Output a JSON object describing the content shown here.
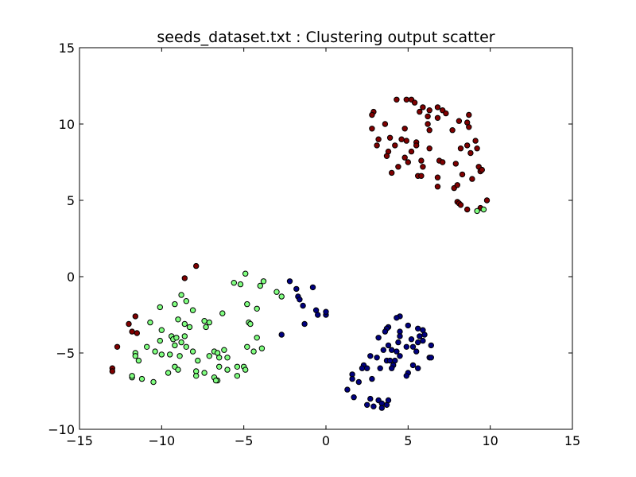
{
  "chart_data": {
    "type": "scatter",
    "title": "seeds_dataset.txt : Clustering output scatter",
    "xlabel": "",
    "ylabel": "",
    "xlim": [
      -15,
      15
    ],
    "ylim": [
      -10,
      15
    ],
    "xticks": [
      -15,
      -10,
      -5,
      0,
      5,
      10,
      15
    ],
    "yticks": [
      -10,
      -5,
      0,
      5,
      10,
      15
    ],
    "xtick_labels": [
      "−15",
      "−10",
      "−5",
      "0",
      "5",
      "10",
      "15"
    ],
    "ytick_labels": [
      "−10",
      "−5",
      "0",
      "5",
      "10",
      "15"
    ],
    "grid": false,
    "series": [
      {
        "color": "#800000",
        "points": [
          [
            2.9,
            10.8
          ],
          [
            2.8,
            10.6
          ],
          [
            4.3,
            11.6
          ],
          [
            4.9,
            11.6
          ],
          [
            5.2,
            11.6
          ],
          [
            5.4,
            11.4
          ],
          [
            5.9,
            11.1
          ],
          [
            6.3,
            10.9
          ],
          [
            6.8,
            11.1
          ],
          [
            7.1,
            10.9
          ],
          [
            7.3,
            10.7
          ],
          [
            8.7,
            10.6
          ],
          [
            5.7,
            10.8
          ],
          [
            6.2,
            10.5
          ],
          [
            6.8,
            10.4
          ],
          [
            2.8,
            9.7
          ],
          [
            3.6,
            10.0
          ],
          [
            4.8,
            9.7
          ],
          [
            6.2,
            10.0
          ],
          [
            6.3,
            9.6
          ],
          [
            7.7,
            9.6
          ],
          [
            8.1,
            10.2
          ],
          [
            8.6,
            10.1
          ],
          [
            8.7,
            9.8
          ],
          [
            3.2,
            9.0
          ],
          [
            3.9,
            9.1
          ],
          [
            4.6,
            9.0
          ],
          [
            4.9,
            8.9
          ],
          [
            5.5,
            8.8
          ],
          [
            5.5,
            8.6
          ],
          [
            3.1,
            8.6
          ],
          [
            4.2,
            8.6
          ],
          [
            3.8,
            8.2
          ],
          [
            5.2,
            8.2
          ],
          [
            6.3,
            8.4
          ],
          [
            8.2,
            8.4
          ],
          [
            8.6,
            8.6
          ],
          [
            9.1,
            8.9
          ],
          [
            9.2,
            8.4
          ],
          [
            8.8,
            8.1
          ],
          [
            3.7,
            7.9
          ],
          [
            4.8,
            7.8
          ],
          [
            5.0,
            7.5
          ],
          [
            5.8,
            7.6
          ],
          [
            5.9,
            7.2
          ],
          [
            6.9,
            7.6
          ],
          [
            7.1,
            7.5
          ],
          [
            7.9,
            7.4
          ],
          [
            4.4,
            7.2
          ],
          [
            4.0,
            6.8
          ],
          [
            5.6,
            6.6
          ],
          [
            5.8,
            6.6
          ],
          [
            6.8,
            6.5
          ],
          [
            8.3,
            6.7
          ],
          [
            9.3,
            7.2
          ],
          [
            9.4,
            6.9
          ],
          [
            9.5,
            7.0
          ],
          [
            6.8,
            5.9
          ],
          [
            7.8,
            5.8
          ],
          [
            8.0,
            6.0
          ],
          [
            8.9,
            6.4
          ],
          [
            8.0,
            4.9
          ],
          [
            8.1,
            4.8
          ],
          [
            8.2,
            4.7
          ],
          [
            8.6,
            4.4
          ],
          [
            9.4,
            4.5
          ],
          [
            9.8,
            5.0
          ],
          [
            -8.6,
            -0.1
          ],
          [
            -7.9,
            0.7
          ],
          [
            -11.6,
            -2.6
          ],
          [
            -12.0,
            -3.1
          ],
          [
            -11.8,
            -3.6
          ],
          [
            -11.5,
            -3.7
          ],
          [
            -12.7,
            -4.6
          ],
          [
            -13.0,
            -6.0
          ],
          [
            -13.0,
            -6.2
          ]
        ]
      },
      {
        "color": "#80ff80",
        "points": [
          [
            9.2,
            4.3
          ],
          [
            9.6,
            4.4
          ],
          [
            -4.9,
            0.2
          ],
          [
            -5.6,
            -0.4
          ],
          [
            -5.2,
            -0.5
          ],
          [
            -3.8,
            -0.3
          ],
          [
            -4.0,
            -0.6
          ],
          [
            -3.0,
            -1.0
          ],
          [
            -2.7,
            -1.3
          ],
          [
            -8.8,
            -1.2
          ],
          [
            -8.5,
            -1.6
          ],
          [
            -4.8,
            -1.8
          ],
          [
            -4.2,
            -2.1
          ],
          [
            -10.1,
            -2.0
          ],
          [
            -9.2,
            -1.8
          ],
          [
            -8.1,
            -2.2
          ],
          [
            -6.3,
            -2.4
          ],
          [
            -4.7,
            -3.0
          ],
          [
            -4.6,
            -3.1
          ],
          [
            -10.7,
            -3.0
          ],
          [
            -9.0,
            -2.8
          ],
          [
            -8.3,
            -3.3
          ],
          [
            -8.6,
            -3.1
          ],
          [
            -7.4,
            -2.9
          ],
          [
            -7.1,
            -3.0
          ],
          [
            -7.3,
            -3.3
          ],
          [
            -10.0,
            -3.5
          ],
          [
            -9.4,
            -3.9
          ],
          [
            -9.3,
            -4.1
          ],
          [
            -9.1,
            -4.0
          ],
          [
            -8.8,
            -4.3
          ],
          [
            -8.6,
            -3.9
          ],
          [
            -9.2,
            -4.5
          ],
          [
            -8.5,
            -4.6
          ],
          [
            -10.1,
            -4.2
          ],
          [
            -10.0,
            -5.1
          ],
          [
            -10.9,
            -4.6
          ],
          [
            -10.4,
            -4.9
          ],
          [
            -11.6,
            -5.0
          ],
          [
            -11.6,
            -5.2
          ],
          [
            -9.5,
            -5.1
          ],
          [
            -8.9,
            -5.2
          ],
          [
            -8.1,
            -4.9
          ],
          [
            -7.8,
            -5.5
          ],
          [
            -7.1,
            -5.2
          ],
          [
            -6.8,
            -4.9
          ],
          [
            -6.6,
            -5.0
          ],
          [
            -6.5,
            -5.3
          ],
          [
            -6.2,
            -4.8
          ],
          [
            -6.0,
            -5.3
          ],
          [
            -5.4,
            -5.9
          ],
          [
            -5.0,
            -5.9
          ],
          [
            -4.9,
            -6.1
          ],
          [
            -4.8,
            -4.6
          ],
          [
            -4.4,
            -4.9
          ],
          [
            -3.9,
            -4.7
          ],
          [
            -4.2,
            -4.0
          ],
          [
            -9.2,
            -5.9
          ],
          [
            -9.6,
            -6.3
          ],
          [
            -9.0,
            -6.1
          ],
          [
            -7.9,
            -6.2
          ],
          [
            -7.9,
            -6.5
          ],
          [
            -7.4,
            -6.3
          ],
          [
            -6.8,
            -6.6
          ],
          [
            -6.6,
            -6.8
          ],
          [
            -6.5,
            -5.9
          ],
          [
            -6.0,
            -6.1
          ],
          [
            -5.4,
            -6.5
          ],
          [
            -11.4,
            -5.5
          ],
          [
            -11.8,
            -6.6
          ],
          [
            -11.8,
            -6.5
          ],
          [
            -11.2,
            -6.7
          ],
          [
            -10.5,
            -6.9
          ],
          [
            -6.7,
            -6.8
          ]
        ]
      },
      {
        "color": "#000080",
        "points": [
          [
            -2.2,
            -0.3
          ],
          [
            -1.8,
            -0.8
          ],
          [
            -0.8,
            -0.7
          ],
          [
            -1.7,
            -1.3
          ],
          [
            -1.6,
            -1.5
          ],
          [
            -1.4,
            -1.9
          ],
          [
            -0.6,
            -2.2
          ],
          [
            -0.5,
            -2.5
          ],
          [
            0.0,
            -2.5
          ],
          [
            0.0,
            -2.3
          ],
          [
            -1.3,
            -3.1
          ],
          [
            -2.7,
            -3.8
          ],
          [
            4.5,
            -2.6
          ],
          [
            4.3,
            -2.7
          ],
          [
            5.0,
            -3.2
          ],
          [
            3.8,
            -3.3
          ],
          [
            3.7,
            -3.4
          ],
          [
            3.6,
            -3.6
          ],
          [
            5.6,
            -3.4
          ],
          [
            5.9,
            -3.5
          ],
          [
            6.0,
            -3.8
          ],
          [
            5.7,
            -3.9
          ],
          [
            4.5,
            -3.6
          ],
          [
            4.5,
            -3.9
          ],
          [
            5.2,
            -4.1
          ],
          [
            5.6,
            -4.3
          ],
          [
            5.9,
            -4.2
          ],
          [
            6.4,
            -4.5
          ],
          [
            3.2,
            -4.0
          ],
          [
            4.4,
            -4.3
          ],
          [
            3.8,
            -4.5
          ],
          [
            3.5,
            -4.8
          ],
          [
            4.0,
            -4.8
          ],
          [
            4.3,
            -4.9
          ],
          [
            4.9,
            -4.6
          ],
          [
            5.3,
            -4.6
          ],
          [
            5.5,
            -4.9
          ],
          [
            4.5,
            -5.2
          ],
          [
            4.2,
            -5.5
          ],
          [
            3.7,
            -5.5
          ],
          [
            3.9,
            -5.5
          ],
          [
            2.7,
            -5.2
          ],
          [
            3.1,
            -5.3
          ],
          [
            2.3,
            -5.8
          ],
          [
            2.2,
            -6.0
          ],
          [
            3.3,
            -6.0
          ],
          [
            4.1,
            -5.8
          ],
          [
            4.0,
            -6.0
          ],
          [
            5.3,
            -5.8
          ],
          [
            5.6,
            -6.0
          ],
          [
            5.0,
            -6.3
          ],
          [
            4.9,
            -6.5
          ],
          [
            6.3,
            -5.3
          ],
          [
            6.4,
            -5.3
          ],
          [
            1.6,
            -6.4
          ],
          [
            1.6,
            -6.7
          ],
          [
            2.0,
            -6.9
          ],
          [
            2.8,
            -6.7
          ],
          [
            2.5,
            -6.0
          ],
          [
            1.3,
            -7.4
          ],
          [
            1.7,
            -7.9
          ],
          [
            2.7,
            -8.0
          ],
          [
            3.2,
            -8.1
          ],
          [
            2.9,
            -8.5
          ],
          [
            3.4,
            -8.3
          ],
          [
            3.4,
            -8.6
          ],
          [
            3.7,
            -8.4
          ],
          [
            3.8,
            -8.1
          ],
          [
            2.5,
            -8.4
          ]
        ]
      }
    ]
  }
}
